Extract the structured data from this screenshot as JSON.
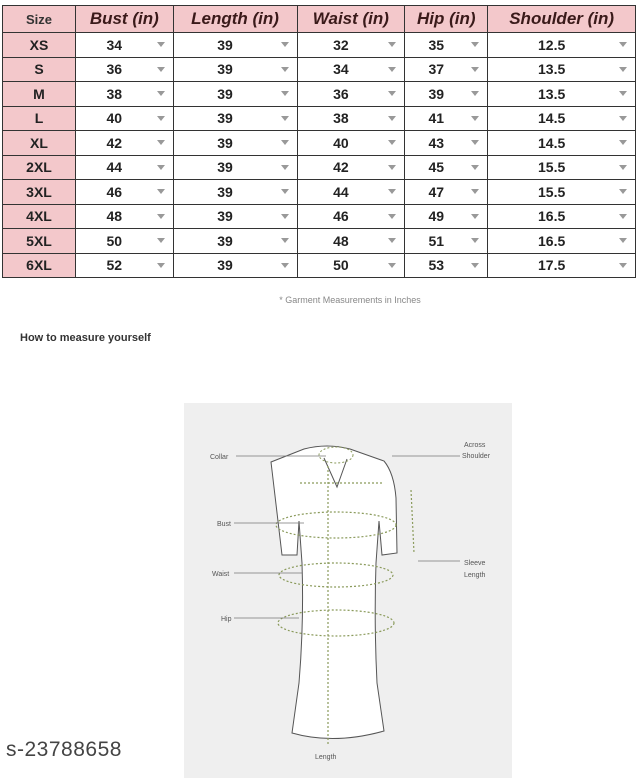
{
  "size_chart": {
    "headers": [
      "Size",
      "Bust (in)",
      "Length (in)",
      "Waist (in)",
      "Hip (in)",
      "Shoulder (in)"
    ],
    "rows": [
      [
        "XS",
        "34",
        "39",
        "32",
        "35",
        "12.5"
      ],
      [
        "S",
        "36",
        "39",
        "34",
        "37",
        "13.5"
      ],
      [
        "M",
        "38",
        "39",
        "36",
        "39",
        "13.5"
      ],
      [
        "L",
        "40",
        "39",
        "38",
        "41",
        "14.5"
      ],
      [
        "XL",
        "42",
        "39",
        "40",
        "43",
        "14.5"
      ],
      [
        "2XL",
        "44",
        "39",
        "42",
        "45",
        "15.5"
      ],
      [
        "3XL",
        "46",
        "39",
        "44",
        "47",
        "15.5"
      ],
      [
        "4XL",
        "48",
        "39",
        "46",
        "49",
        "16.5"
      ],
      [
        "5XL",
        "50",
        "39",
        "48",
        "51",
        "16.5"
      ],
      [
        "6XL",
        "52",
        "39",
        "50",
        "53",
        "17.5"
      ]
    ],
    "header_color": "#f3c8cb"
  },
  "note": "* Garment Measurements in Inches",
  "how_to_title": "How to measure yourself",
  "diagram": {
    "labels": {
      "collar": "Collar",
      "across_shoulder_1": "Across",
      "across_shoulder_2": "Shoulder",
      "bust": "Bust",
      "waist": "Waist",
      "hip": "Hip",
      "sleeve_1": "Sleeve",
      "sleeve_2": "Length",
      "length": "Length"
    }
  },
  "watermark": "s-23788658"
}
